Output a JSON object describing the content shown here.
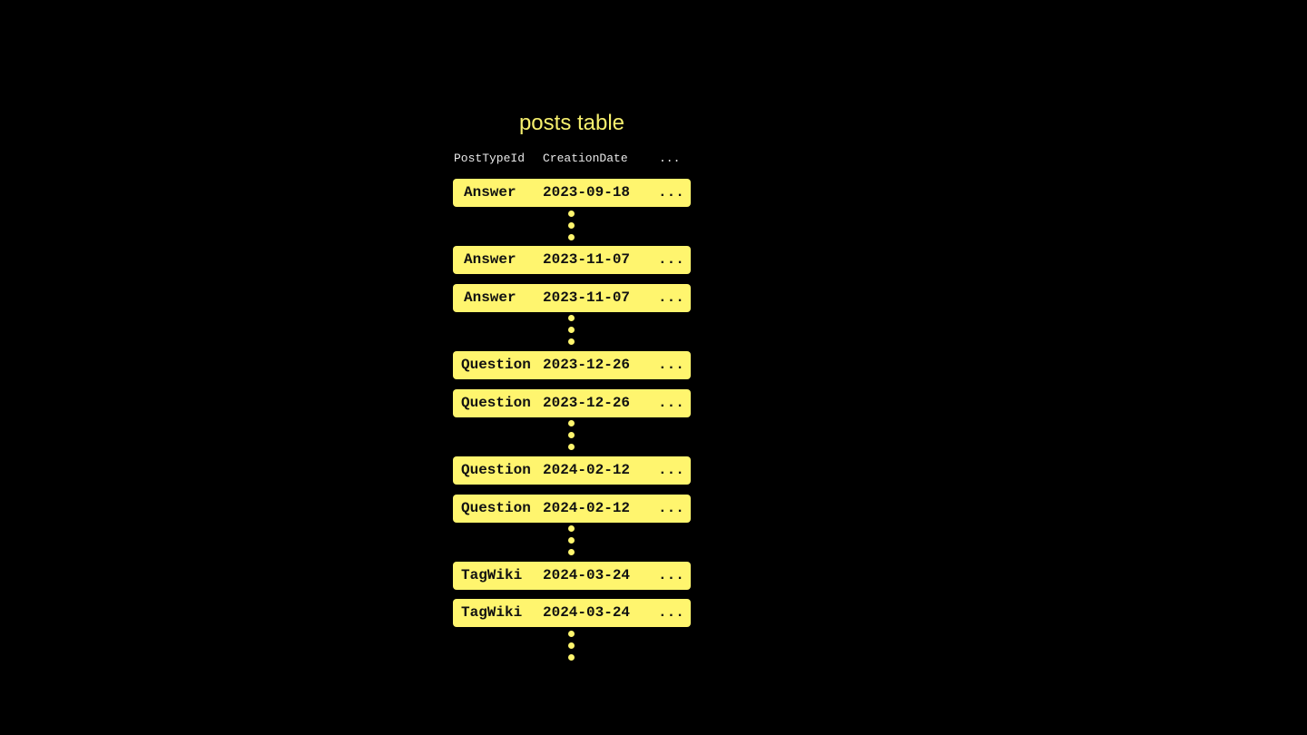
{
  "title": "posts table",
  "columns": [
    "PostTypeId",
    "CreationDate",
    "..."
  ],
  "rows": [
    [
      "Answer",
      "2023-09-18",
      "..."
    ],
    [
      "Answer",
      "2023-11-07",
      "..."
    ],
    [
      "Answer",
      "2023-11-07",
      "..."
    ],
    [
      "Question",
      "2023-12-26",
      "..."
    ],
    [
      "Question",
      "2023-12-26",
      "..."
    ],
    [
      "Question",
      "2024-02-12",
      "..."
    ],
    [
      "Question",
      "2024-02-12",
      "..."
    ],
    [
      "TagWiki",
      "2024-03-24",
      "..."
    ],
    [
      "TagWiki",
      "2024-03-24",
      "..."
    ]
  ],
  "colors": {
    "accent": "#fff56e",
    "title": "#f7f06e",
    "background": "#000000"
  }
}
